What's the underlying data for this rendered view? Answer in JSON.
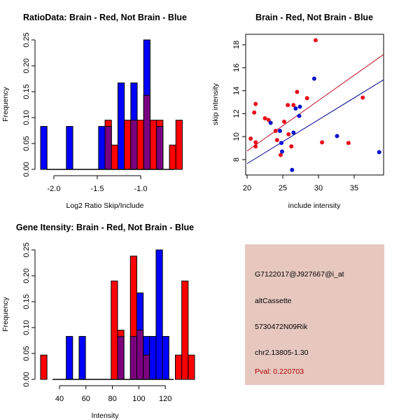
{
  "chart_data": [
    {
      "id": "ratio-hist",
      "type": "bar",
      "title": "RatioData: Brain - Red, Not Brain - Blue",
      "xlabel": "Log2 Ratio Skip/Include",
      "ylabel": "Frequency",
      "xlim": [
        -2.153,
        -0.7
      ],
      "ylim": [
        0,
        0.25
      ],
      "xticks": [
        -2.0,
        -1.5,
        -1.0
      ],
      "xtick_labels": [
        "-2.0",
        "-1.5",
        "-1.0"
      ],
      "yticks": [
        0.0,
        0.05,
        0.1,
        0.15,
        0.2,
        0.25
      ],
      "ytick_labels": [
        "0.00",
        "0.05",
        "0.10",
        "0.15",
        "0.20",
        "0.25"
      ],
      "bin_start": -2.153,
      "bin_width": 0.0742,
      "series": [
        {
          "name": "Brain",
          "color": "#ff0000",
          "values": [
            0,
            0,
            0,
            0,
            0,
            0,
            0,
            0,
            0,
            0,
            0.095,
            0.047,
            0,
            0.095,
            0.095,
            0.095,
            0.143,
            0.095,
            0.095,
            0,
            0.047,
            0.095
          ]
        },
        {
          "name": "Not Brain",
          "color": "#0000ff",
          "values": [
            0.083,
            0,
            0,
            0,
            0.083,
            0,
            0,
            0,
            0,
            0.083,
            0.083,
            0,
            0.167,
            0,
            0.167,
            0,
            0.25,
            0,
            0.083,
            0,
            0,
            0
          ]
        }
      ],
      "overlap_color": "#7b0080"
    },
    {
      "id": "intensity-scatter",
      "type": "scatter",
      "title": "Brain - Red, Not Brain - Blue",
      "xlabel": "include intensity",
      "ylabel": "skip intensity",
      "xlim": [
        19.8,
        39.1
      ],
      "ylim": [
        6.65,
        18.9
      ],
      "xticks": [
        20,
        25,
        30,
        35
      ],
      "yticks": [
        8,
        10,
        12,
        14,
        16,
        18
      ],
      "series": [
        {
          "name": "Brain",
          "color": "#e8101c",
          "x": [
            20.5,
            21.0,
            21.2,
            21.2,
            21.2,
            22.5,
            23.0,
            24.0,
            24.2,
            24.7,
            25.2,
            25.7,
            25.8,
            26.2,
            26.5,
            27.0,
            28.4,
            29.6,
            30.5,
            34.2,
            36.2
          ],
          "y": [
            9.83,
            12.1,
            12.85,
            9.5,
            9.15,
            11.6,
            11.45,
            10.5,
            9.7,
            8.4,
            11.3,
            12.75,
            10.2,
            9.15,
            12.75,
            13.9,
            13.35,
            18.4,
            9.5,
            9.45,
            13.4
          ],
          "fit": {
            "x": [
              20,
              39.1
            ],
            "y": [
              8.75,
              17.15
            ],
            "color": "#c0102a"
          }
        },
        {
          "name": "Not Brain",
          "color": "#0a14d0",
          "x": [
            23.3,
            24.6,
            24.8,
            24.9,
            26.3,
            26.5,
            26.8,
            27.3,
            27.4,
            29.4,
            32.6,
            38.5
          ],
          "y": [
            11.2,
            10.5,
            9.45,
            8.7,
            7.1,
            10.35,
            12.45,
            11.8,
            12.6,
            15.05,
            10.05,
            8.65
          ],
          "fit": {
            "x": [
              20,
              39.1
            ],
            "y": [
              7.65,
              14.95
            ],
            "color": "#000090"
          }
        }
      ]
    },
    {
      "id": "gene-hist",
      "type": "bar",
      "title": "Gene Itensity: Brain - Red, Not Brain - Blue",
      "xlabel": "Intensity",
      "ylabel": "Frequency",
      "xlim": [
        25.7,
        125
      ],
      "ylim": [
        0,
        0.25
      ],
      "xticks": [
        40,
        60,
        80,
        100,
        120
      ],
      "xtick_labels": [
        "40",
        "60",
        "80",
        "100",
        "120"
      ],
      "yticks": [
        0.0,
        0.05,
        0.1,
        0.15,
        0.2,
        0.25
      ],
      "ytick_labels": [
        "0.00",
        "0.05",
        "0.10",
        "0.15",
        "0.20",
        "0.25"
      ],
      "bin_start": 25.7,
      "bin_width": 4.85,
      "series": [
        {
          "name": "Brain",
          "color": "#ff0000",
          "values": [
            0.047,
            0,
            0,
            0,
            0,
            0,
            0,
            0,
            0,
            0,
            0,
            0.19,
            0.095,
            0,
            0.238,
            0.095,
            0.047,
            0,
            0,
            0,
            0,
            0.047,
            0.19,
            0.047
          ]
        },
        {
          "name": "Not Brain",
          "color": "#0000ff",
          "values": [
            0,
            0,
            0,
            0,
            0.083,
            0,
            0.083,
            0,
            0,
            0,
            0,
            0,
            0.083,
            0,
            0.083,
            0.167,
            0.083,
            0.083,
            0.25,
            0.083,
            0,
            0,
            0,
            0
          ]
        }
      ],
      "overlap_color": "#7b0080"
    }
  ],
  "info": {
    "probe": "G7122017@J927667@i_at",
    "event_type": "altCassette",
    "gene": "5730472N09Rik",
    "location": "chr2.13805-1.30",
    "pval": "Pval: 0.220703"
  }
}
